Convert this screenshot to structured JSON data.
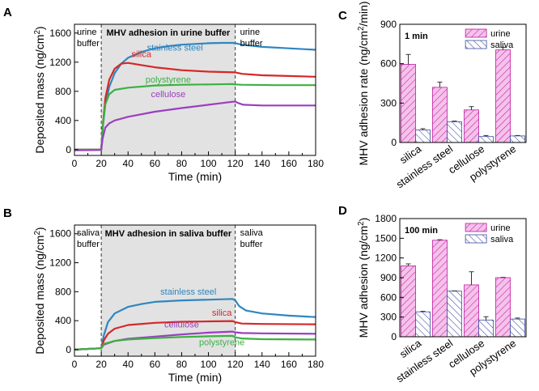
{
  "figure": {
    "panel_labels": [
      "A",
      "B",
      "C",
      "D"
    ]
  },
  "colors": {
    "silica": "#d62728",
    "stainless_steel": "#2e86c1",
    "polystyrene": "#3cb043",
    "cellulose": "#9b3fbf",
    "urine_bar": "#f4c2ea",
    "urine_edge": "#c2189f",
    "saliva_bar": "#ffffff",
    "saliva_edge": "#3a4aa0",
    "shade": "#e2e2e2"
  },
  "chart_data": [
    {
      "panel": "A",
      "type": "line",
      "xlabel": "Time (min)",
      "ylabel": "Deposited mass (ng/cm²)",
      "xlim": [
        0,
        180
      ],
      "ylim": [
        -80,
        1720
      ],
      "xticks": [
        0,
        10,
        20,
        30,
        40,
        50,
        60,
        70,
        80,
        90,
        100,
        110,
        120,
        130,
        140,
        150,
        160,
        170,
        180
      ],
      "yticks": [
        0,
        400,
        800,
        1200,
        1600
      ],
      "phase_labels": {
        "left": [
          "urine",
          "buffer"
        ],
        "middle": "MHV adhesion in urine buffer",
        "right": [
          "urine",
          "buffer"
        ]
      },
      "shade_range": [
        20,
        120
      ],
      "series": [
        {
          "name": "stainless steel",
          "label_at": [
            75,
            1360
          ],
          "points": [
            [
              0,
              0
            ],
            [
              20,
              0
            ],
            [
              21,
              280
            ],
            [
              23,
              620
            ],
            [
              26,
              860
            ],
            [
              30,
              1050
            ],
            [
              35,
              1180
            ],
            [
              40,
              1260
            ],
            [
              50,
              1340
            ],
            [
              60,
              1390
            ],
            [
              70,
              1420
            ],
            [
              80,
              1440
            ],
            [
              90,
              1450
            ],
            [
              100,
              1460
            ],
            [
              110,
              1465
            ],
            [
              118,
              1465
            ],
            [
              120,
              1460
            ],
            [
              125,
              1440
            ],
            [
              140,
              1410
            ],
            [
              160,
              1390
            ],
            [
              180,
              1370
            ]
          ]
        },
        {
          "name": "silica",
          "label_at": [
            50,
            1270
          ],
          "points": [
            [
              0,
              0
            ],
            [
              20,
              0
            ],
            [
              21,
              300
            ],
            [
              23,
              700
            ],
            [
              26,
              960
            ],
            [
              30,
              1110
            ],
            [
              35,
              1180
            ],
            [
              40,
              1190
            ],
            [
              50,
              1160
            ],
            [
              60,
              1130
            ],
            [
              80,
              1090
            ],
            [
              100,
              1070
            ],
            [
              120,
              1060
            ],
            [
              125,
              1040
            ],
            [
              140,
              1020
            ],
            [
              160,
              1010
            ],
            [
              180,
              1000
            ]
          ]
        },
        {
          "name": "polystyrene",
          "label_at": [
            70,
            920
          ],
          "points": [
            [
              0,
              0
            ],
            [
              20,
              0
            ],
            [
              21,
              300
            ],
            [
              23,
              620
            ],
            [
              26,
              760
            ],
            [
              30,
              820
            ],
            [
              40,
              850
            ],
            [
              60,
              880
            ],
            [
              80,
              890
            ],
            [
              100,
              895
            ],
            [
              118,
              900
            ],
            [
              120,
              895
            ],
            [
              125,
              890
            ],
            [
              150,
              885
            ],
            [
              180,
              885
            ]
          ]
        },
        {
          "name": "cellulose",
          "label_at": [
            70,
            720
          ],
          "points": [
            [
              0,
              -10
            ],
            [
              20,
              -5
            ],
            [
              21,
              150
            ],
            [
              23,
              300
            ],
            [
              26,
              360
            ],
            [
              30,
              400
            ],
            [
              40,
              450
            ],
            [
              60,
              520
            ],
            [
              80,
              570
            ],
            [
              100,
              615
            ],
            [
              115,
              650
            ],
            [
              120,
              660
            ],
            [
              122,
              640
            ],
            [
              126,
              615
            ],
            [
              140,
              605
            ],
            [
              180,
              605
            ]
          ]
        }
      ]
    },
    {
      "panel": "B",
      "type": "line",
      "xlabel": "Time (min)",
      "ylabel": "Deposited mass (ng/cm²)",
      "xlim": [
        0,
        180
      ],
      "ylim": [
        -90,
        1720
      ],
      "xticks": [
        0,
        10,
        20,
        30,
        40,
        50,
        60,
        70,
        80,
        90,
        100,
        110,
        120,
        130,
        140,
        150,
        160,
        170,
        180
      ],
      "yticks": [
        0,
        400,
        800,
        1200,
        1600
      ],
      "phase_labels": {
        "left": [
          "saliva",
          "buffer"
        ],
        "middle": "MHV adhesion in saliva buffer",
        "right": [
          "saliva",
          "buffer"
        ]
      },
      "shade_range": [
        20,
        120
      ],
      "series": [
        {
          "name": "stainless steel",
          "label_at": [
            85,
            760
          ],
          "points": [
            [
              0,
              0
            ],
            [
              20,
              20
            ],
            [
              22,
              200
            ],
            [
              25,
              380
            ],
            [
              30,
              500
            ],
            [
              40,
              590
            ],
            [
              50,
              630
            ],
            [
              60,
              660
            ],
            [
              80,
              680
            ],
            [
              100,
              690
            ],
            [
              118,
              700
            ],
            [
              120,
              680
            ],
            [
              123,
              600
            ],
            [
              128,
              540
            ],
            [
              140,
              500
            ],
            [
              160,
              470
            ],
            [
              180,
              450
            ]
          ]
        },
        {
          "name": "silica",
          "label_at": [
            110,
            470
          ],
          "points": [
            [
              0,
              0
            ],
            [
              20,
              20
            ],
            [
              22,
              130
            ],
            [
              25,
              220
            ],
            [
              30,
              290
            ],
            [
              40,
              340
            ],
            [
              60,
              370
            ],
            [
              80,
              385
            ],
            [
              100,
              390
            ],
            [
              118,
              395
            ],
            [
              120,
              380
            ],
            [
              125,
              360
            ],
            [
              140,
              355
            ],
            [
              180,
              350
            ]
          ]
        },
        {
          "name": "cellulose",
          "label_at": [
            80,
            305
          ],
          "points": [
            [
              0,
              0
            ],
            [
              20,
              20
            ],
            [
              22,
              70
            ],
            [
              30,
              120
            ],
            [
              40,
              150
            ],
            [
              60,
              180
            ],
            [
              80,
              210
            ],
            [
              100,
              235
            ],
            [
              118,
              250
            ],
            [
              120,
              240
            ],
            [
              125,
              230
            ],
            [
              140,
              225
            ],
            [
              180,
              220
            ]
          ]
        },
        {
          "name": "polystyrene",
          "label_at": [
            110,
            60
          ],
          "points": [
            [
              0,
              0
            ],
            [
              20,
              20
            ],
            [
              22,
              80
            ],
            [
              30,
              120
            ],
            [
              40,
              140
            ],
            [
              60,
              160
            ],
            [
              80,
              175
            ],
            [
              100,
              185
            ],
            [
              118,
              190
            ],
            [
              120,
              170
            ],
            [
              125,
              155
            ],
            [
              140,
              145
            ],
            [
              180,
              140
            ]
          ]
        }
      ]
    },
    {
      "panel": "C",
      "type": "bar",
      "note": "1 min",
      "ylabel": "MHV adhesion rate (ng/cm²/min)",
      "ylim": [
        0,
        900
      ],
      "yticks": [
        0,
        300,
        600,
        900
      ],
      "categories": [
        "silica",
        "stainless steel",
        "cellulose",
        "polystyrene"
      ],
      "series": [
        {
          "name": "urine",
          "values": [
            595,
            420,
            248,
            705
          ],
          "errors": [
            75,
            40,
            25,
            20
          ]
        },
        {
          "name": "saliva",
          "values": [
            95,
            158,
            45,
            50
          ],
          "errors": [
            10,
            5,
            8,
            3
          ]
        }
      ]
    },
    {
      "panel": "D",
      "type": "bar",
      "note": "100 min",
      "ylabel": "MHV adhesion (ng/cm²)",
      "ylim": [
        0,
        1800
      ],
      "yticks": [
        0,
        300,
        600,
        900,
        1200,
        1500,
        1800
      ],
      "categories": [
        "silica",
        "stainless steel",
        "cellulose",
        "polystyrene"
      ],
      "series": [
        {
          "name": "urine",
          "values": [
            1080,
            1470,
            790,
            900
          ],
          "errors": [
            30,
            8,
            200,
            5
          ]
        },
        {
          "name": "saliva",
          "values": [
            380,
            695,
            255,
            270
          ],
          "errors": [
            8,
            4,
            50,
            15
          ]
        }
      ]
    }
  ]
}
